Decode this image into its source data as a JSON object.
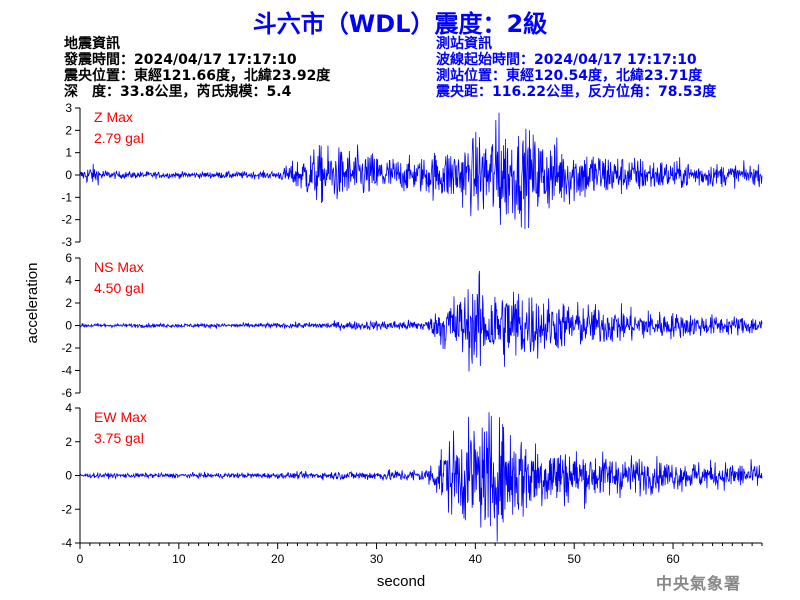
{
  "title": "斗六市（WDL）震度：2級",
  "earthquake_info": {
    "heading": "地震資訊",
    "origin_time": "發震時間：2024/04/17 17:17:10",
    "epicenter": "震央位置：東經121.66度，北緯23.92度",
    "depth_magnitude": "深　度：33.8公里，芮氏規模：5.4"
  },
  "station_info": {
    "heading": "測站資訊",
    "onset_time": "波線起始時間：2024/04/17 17:17:10",
    "station_location": "測站位置：東經120.54度，北緯23.71度",
    "distance_azimuth": "震央距：116.22公里，反方位角：78.53度"
  },
  "agency": "中央氣象署",
  "colors": {
    "trace": "#0000ff",
    "label": "#ff0000",
    "axis": "#000000"
  },
  "chart_data": {
    "type": "line",
    "xlabel": "second",
    "ylabel": "acceleration",
    "xlim": [
      0,
      69
    ],
    "xticks": [
      0,
      10,
      20,
      30,
      40,
      50,
      60
    ],
    "grid": false,
    "panels": [
      {
        "name": "Z Max",
        "max_label": "2.79 gal",
        "peak": 2.79,
        "ylim": [
          -3,
          3
        ],
        "yticks": [
          3,
          2,
          1,
          0,
          -1,
          -2,
          -3
        ],
        "envelope": [
          [
            0,
            0.12
          ],
          [
            1,
            0.35
          ],
          [
            3,
            0.12
          ],
          [
            10,
            0.1
          ],
          [
            20,
            0.12
          ],
          [
            22,
            0.5
          ],
          [
            24,
            0.9
          ],
          [
            28,
            0.8
          ],
          [
            32,
            0.55
          ],
          [
            34,
            0.5
          ],
          [
            36,
            0.75
          ],
          [
            38,
            0.9
          ],
          [
            40,
            1.2
          ],
          [
            42,
            1.6
          ],
          [
            43,
            1.5
          ],
          [
            45,
            1.4
          ],
          [
            47,
            1.2
          ],
          [
            50,
            0.9
          ],
          [
            55,
            0.6
          ],
          [
            60,
            0.45
          ],
          [
            65,
            0.35
          ],
          [
            69,
            0.3
          ]
        ]
      },
      {
        "name": "NS Max",
        "max_label": "4.50 gal",
        "peak": 4.5,
        "ylim": [
          -6,
          6
        ],
        "yticks": [
          6,
          4,
          2,
          0,
          -2,
          -4,
          -6
        ],
        "envelope": [
          [
            0,
            0.12
          ],
          [
            10,
            0.12
          ],
          [
            20,
            0.15
          ],
          [
            30,
            0.3
          ],
          [
            35,
            0.35
          ],
          [
            36,
            0.8
          ],
          [
            37,
            1.8
          ],
          [
            39,
            2.2
          ],
          [
            40,
            2.6
          ],
          [
            42,
            2.4
          ],
          [
            44,
            2.6
          ],
          [
            46,
            2.0
          ],
          [
            48,
            1.6
          ],
          [
            50,
            1.4
          ],
          [
            53,
            1.2
          ],
          [
            56,
            1.0
          ],
          [
            60,
            0.8
          ],
          [
            65,
            0.6
          ],
          [
            69,
            0.6
          ]
        ]
      },
      {
        "name": "EW Max",
        "max_label": "3.75 gal",
        "peak": 3.75,
        "ylim": [
          -4,
          4
        ],
        "yticks": [
          4,
          2,
          0,
          -2,
          -4
        ],
        "envelope": [
          [
            0,
            0.1
          ],
          [
            10,
            0.1
          ],
          [
            20,
            0.12
          ],
          [
            30,
            0.2
          ],
          [
            35,
            0.3
          ],
          [
            36,
            0.8
          ],
          [
            37,
            1.5
          ],
          [
            39,
            2.0
          ],
          [
            41,
            2.2
          ],
          [
            43,
            2.2
          ],
          [
            45,
            1.8
          ],
          [
            47,
            1.4
          ],
          [
            50,
            1.1
          ],
          [
            53,
            0.9
          ],
          [
            56,
            0.8
          ],
          [
            60,
            0.6
          ],
          [
            65,
            0.55
          ],
          [
            69,
            0.5
          ]
        ]
      }
    ]
  }
}
